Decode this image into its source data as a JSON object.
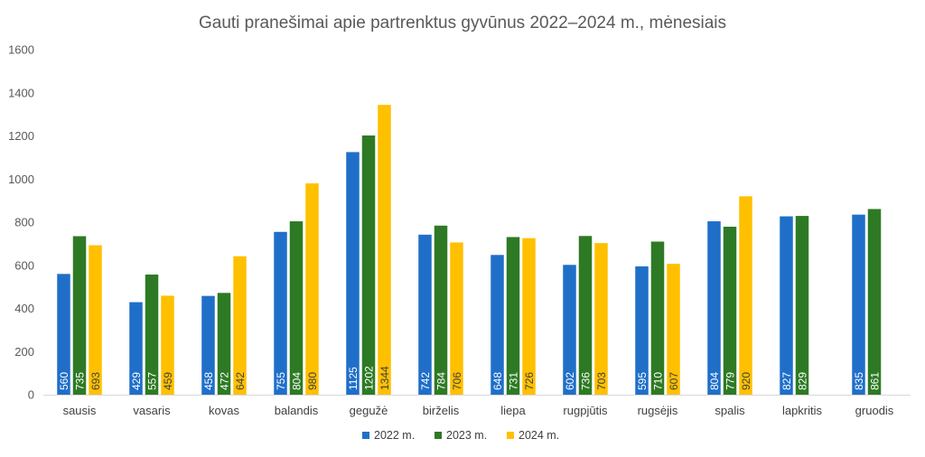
{
  "chart_data": {
    "type": "bar",
    "title": "Gauti pranešimai apie partrenktus gyvūnus 2022–2024 m., mėnesiais",
    "xlabel": "",
    "ylabel": "",
    "ylim": [
      0,
      1600
    ],
    "yticks": [
      0,
      200,
      400,
      600,
      800,
      1000,
      1200,
      1400,
      1600
    ],
    "grid": false,
    "legend_position": "bottom",
    "data_labels": "inside-base-rotated",
    "categories": [
      "sausis",
      "vasaris",
      "kovas",
      "balandis",
      "gegužė",
      "birželis",
      "liepa",
      "rugpjūtis",
      "rugsėjis",
      "spalis",
      "lapkritis",
      "gruodis"
    ],
    "series": [
      {
        "name": "2022 m.",
        "color": "#1f6fc9",
        "label_color": "#ffffff",
        "values": [
          560,
          429,
          458,
          755,
          1125,
          742,
          648,
          602,
          595,
          804,
          827,
          835
        ]
      },
      {
        "name": "2023 m.",
        "color": "#2e7a24",
        "label_color": "#ffffff",
        "values": [
          735,
          557,
          472,
          804,
          1202,
          784,
          731,
          736,
          710,
          779,
          829,
          861
        ]
      },
      {
        "name": "2024 m.",
        "color": "#ffc000",
        "label_color": "#404040",
        "values": [
          693,
          459,
          642,
          980,
          1344,
          706,
          726,
          703,
          607,
          920,
          null,
          null
        ]
      }
    ]
  }
}
